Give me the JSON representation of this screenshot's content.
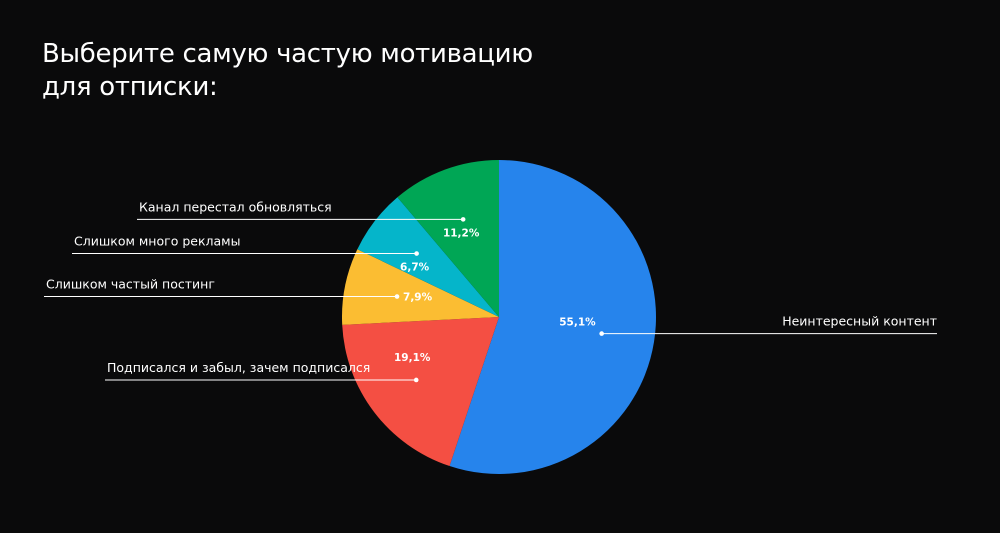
{
  "chart_data": {
    "type": "pie",
    "title": [
      "Выберите самую частую мотивацию",
      "для отписки:"
    ],
    "slices": [
      {
        "label": "Неинтересный контент",
        "value": 55.1,
        "value_label": "55,1%",
        "color": "#2684ec",
        "side": "right"
      },
      {
        "label": "Подписался и забыл, зачем подписался",
        "value": 19.1,
        "value_label": "19,1%",
        "color": "#f44f43",
        "side": "left"
      },
      {
        "label": "Слишком частый постинг",
        "value": 7.9,
        "value_label": "7,9%",
        "color": "#fbbd32",
        "side": "left"
      },
      {
        "label": "Слишком много рекламы",
        "value": 6.7,
        "value_label": "6,7%",
        "color": "#05b5ca",
        "side": "left"
      },
      {
        "label": "Канал перестал обновляться",
        "value": 11.2,
        "value_label": "11,2%",
        "color": "#00a655",
        "side": "left"
      }
    ],
    "start": "top",
    "direction": "clockwise",
    "background": "#0a0a0b",
    "line_color": "#ffffff"
  }
}
